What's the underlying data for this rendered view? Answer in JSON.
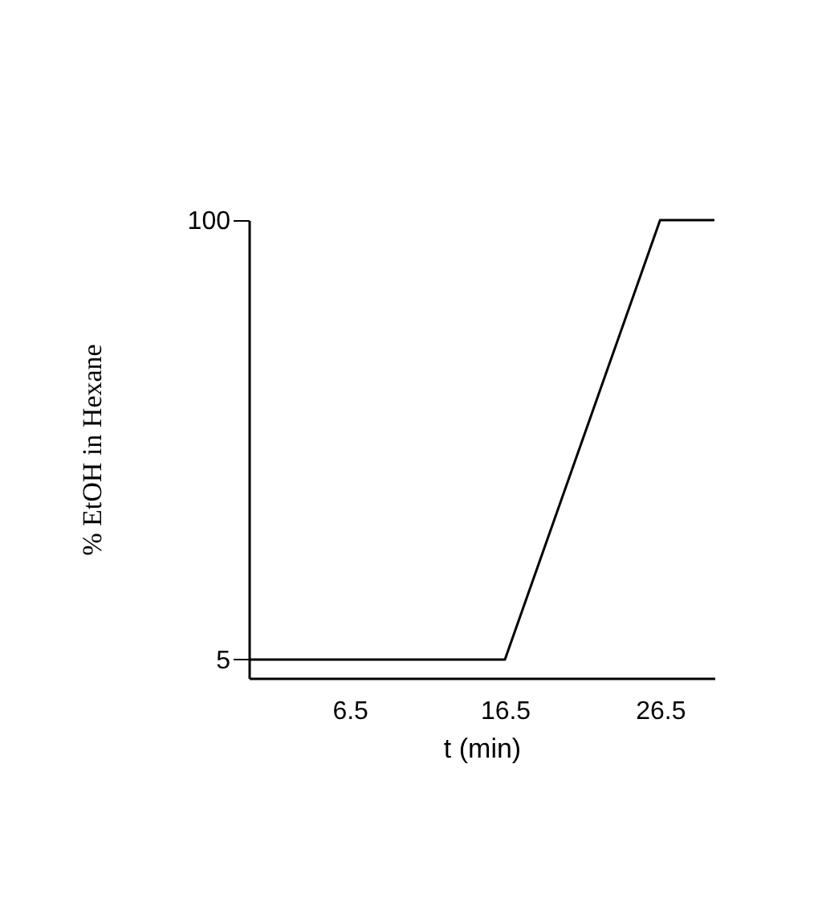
{
  "chart_data": {
    "type": "line",
    "xlabel": "t (min)",
    "ylabel": "% EtOH in Hexane",
    "x": [
      0,
      16.5,
      26.5,
      30
    ],
    "series": [
      {
        "color": "#000000",
        "values": [
          5,
          5,
          100,
          100
        ]
      }
    ],
    "xlim": [
      0,
      30
    ],
    "ylim": [
      1,
      100
    ],
    "xticks": [
      6.5,
      16.5,
      26.5
    ],
    "yticks": [
      5,
      100
    ],
    "grid": false,
    "marker": "none",
    "line_style": "solid"
  }
}
